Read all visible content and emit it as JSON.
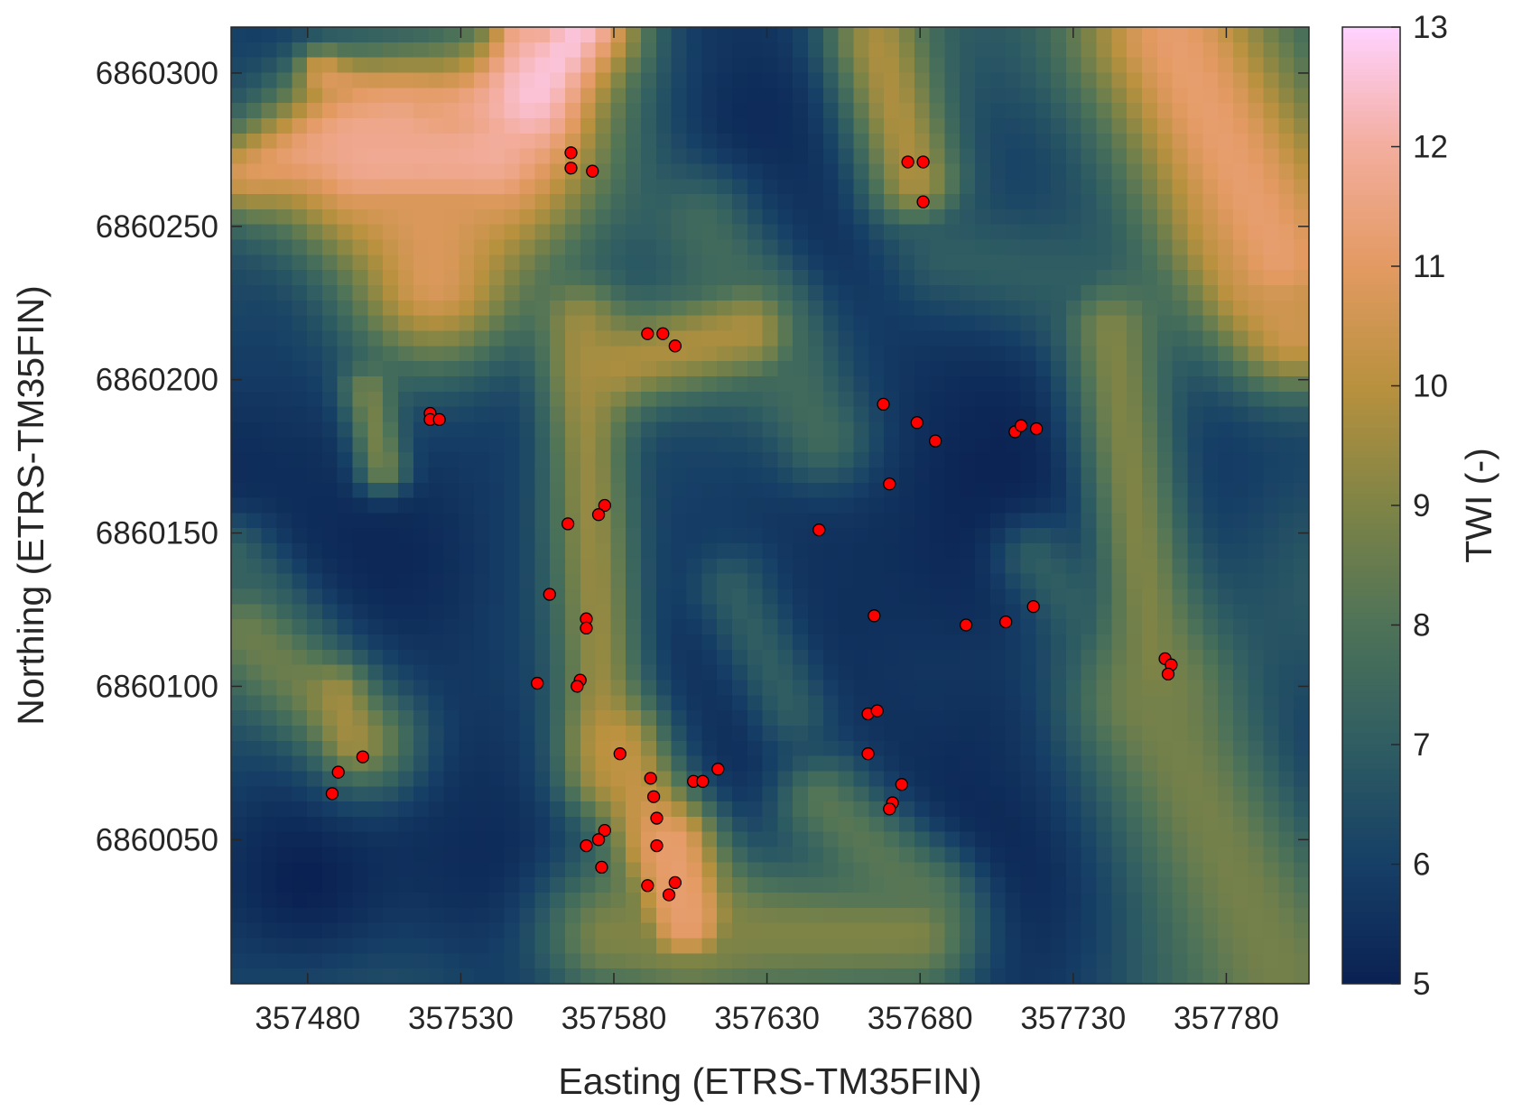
{
  "chart_data": {
    "type": "heatmap",
    "title": "",
    "xlabel": "Easting (ETRS-TM35FIN)",
    "ylabel": "Northing (ETRS-TM35FIN)",
    "xlim": [
      357455,
      357807
    ],
    "ylim": [
      6860003,
      6860315
    ],
    "xticks": [
      357480,
      357530,
      357580,
      357630,
      357680,
      357730,
      357780
    ],
    "yticks": [
      6860050,
      6860100,
      6860150,
      6860200,
      6860250,
      6860300
    ],
    "colorbar": {
      "label": "TWI (-)",
      "min": 5,
      "max": 13,
      "ticks": [
        5,
        6,
        7,
        8,
        9,
        10,
        11,
        12,
        13
      ],
      "colormap": [
        [
          5,
          "#0a2152"
        ],
        [
          6,
          "#163f66"
        ],
        [
          7,
          "#2f5d62"
        ],
        [
          8,
          "#4e7358"
        ],
        [
          9,
          "#7f8446"
        ],
        [
          10,
          "#b8913e"
        ],
        [
          11,
          "#e39a62"
        ],
        [
          12,
          "#f3ad9e"
        ],
        [
          13,
          "#ffd2ff"
        ]
      ]
    },
    "heatmap_features": [
      {
        "type": "line",
        "x1": 357460,
        "y1": 6860267,
        "x2": 357510,
        "y2": 6860285,
        "w": 10,
        "twi": 10.5
      },
      {
        "type": "line",
        "x1": 357500,
        "y1": 6860272,
        "x2": 357540,
        "y2": 6860272,
        "w": 24,
        "twi": 11.8
      },
      {
        "type": "line",
        "x1": 357520,
        "y1": 6860262,
        "x2": 357522,
        "y2": 6860232,
        "w": 22,
        "twi": 10.8
      },
      {
        "type": "line",
        "x1": 357500,
        "y1": 6860285,
        "x2": 357550,
        "y2": 6860285,
        "w": 8,
        "twi": 11.3
      },
      {
        "type": "line",
        "x1": 357549,
        "y1": 6860290,
        "x2": 357550,
        "y2": 6860315,
        "w": 6,
        "twi": 10.8
      },
      {
        "type": "line",
        "x1": 357555,
        "y1": 6860294,
        "x2": 357570,
        "y2": 6860315,
        "w": 14,
        "twi": 12.6
      },
      {
        "type": "line",
        "x1": 357485,
        "y1": 6860300,
        "x2": 357500,
        "y2": 6860290,
        "w": 5,
        "twi": 10.8
      },
      {
        "type": "line",
        "x1": 357668,
        "y1": 6860310,
        "x2": 357680,
        "y2": 6860265,
        "w": 12,
        "twi": 9.8
      },
      {
        "type": "line",
        "x1": 357765,
        "y1": 6860312,
        "x2": 357800,
        "y2": 6860240,
        "w": 28,
        "twi": 11.2
      },
      {
        "type": "line",
        "x1": 357790,
        "y1": 6860250,
        "x2": 357805,
        "y2": 6860215,
        "w": 12,
        "twi": 10.5
      },
      {
        "type": "line",
        "x1": 357570,
        "y1": 6860218,
        "x2": 357578,
        "y2": 6860070,
        "w": 10,
        "twi": 9.4
      },
      {
        "type": "line",
        "x1": 357583,
        "y1": 6860078,
        "x2": 357605,
        "y2": 6860025,
        "w": 10,
        "twi": 10.2
      },
      {
        "type": "line",
        "x1": 357600,
        "y1": 6860045,
        "x2": 357605,
        "y2": 6860020,
        "w": 10,
        "twi": 11.2
      },
      {
        "type": "line",
        "x1": 357580,
        "y1": 6860016,
        "x2": 357680,
        "y2": 6860016,
        "w": 16,
        "twi": 9.0
      },
      {
        "type": "line",
        "x1": 357582,
        "y1": 6860204,
        "x2": 357625,
        "y2": 6860215,
        "w": 12,
        "twi": 9.8
      },
      {
        "type": "line",
        "x1": 357460,
        "y1": 6860115,
        "x2": 357500,
        "y2": 6860080,
        "w": 14,
        "twi": 8.6
      },
      {
        "type": "line",
        "x1": 357490,
        "y1": 6860095,
        "x2": 357495,
        "y2": 6860080,
        "w": 6,
        "twi": 9.6
      },
      {
        "type": "line",
        "x1": 357745,
        "y1": 6860215,
        "x2": 357760,
        "y2": 6860100,
        "w": 12,
        "twi": 9.0
      },
      {
        "type": "line",
        "x1": 357760,
        "y1": 6860090,
        "x2": 357800,
        "y2": 6860005,
        "w": 22,
        "twi": 8.8
      },
      {
        "type": "line",
        "x1": 357500,
        "y1": 6860195,
        "x2": 357505,
        "y2": 6860170,
        "w": 6,
        "twi": 8.8
      },
      {
        "type": "line",
        "x1": 357610,
        "y1": 6860250,
        "x2": 357650,
        "y2": 6860180,
        "w": 12,
        "twi": 7.6
      },
      {
        "type": "line",
        "x1": 357690,
        "y1": 6860240,
        "x2": 357740,
        "y2": 6860230,
        "w": 14,
        "twi": 7.0
      },
      {
        "type": "line",
        "x1": 357650,
        "y1": 6860060,
        "x2": 357680,
        "y2": 6860030,
        "w": 12,
        "twi": 8.2
      },
      {
        "type": "line",
        "x1": 357620,
        "y1": 6860130,
        "x2": 357640,
        "y2": 6860090,
        "w": 10,
        "twi": 7.0
      },
      {
        "type": "line",
        "x1": 357720,
        "y1": 6860140,
        "x2": 357745,
        "y2": 6860110,
        "w": 10,
        "twi": 7.0
      },
      {
        "type": "line",
        "x1": 357455,
        "y1": 6860140,
        "x2": 357470,
        "y2": 6860110,
        "w": 10,
        "twi": 7.2
      },
      {
        "type": "blob",
        "x": 357495,
        "y": 6860235,
        "r": 30,
        "twi": 5.0
      },
      {
        "type": "blob",
        "x": 357505,
        "y": 6860140,
        "r": 40,
        "twi": 5.2
      },
      {
        "type": "blob",
        "x": 357480,
        "y": 6860035,
        "r": 25,
        "twi": 5.0
      },
      {
        "type": "blob",
        "x": 357540,
        "y": 6860040,
        "r": 22,
        "twi": 5.3
      },
      {
        "type": "blob",
        "x": 357635,
        "y": 6860075,
        "r": 25,
        "twi": 5.2
      },
      {
        "type": "blob",
        "x": 357700,
        "y": 6860045,
        "r": 35,
        "twi": 5.0
      },
      {
        "type": "blob",
        "x": 357705,
        "y": 6860160,
        "r": 45,
        "twi": 5.0
      },
      {
        "type": "blob",
        "x": 357755,
        "y": 6860290,
        "r": 35,
        "twi": 5.0
      },
      {
        "type": "blob",
        "x": 357775,
        "y": 6860210,
        "r": 30,
        "twi": 5.0
      },
      {
        "type": "blob",
        "x": 357630,
        "y": 6860285,
        "r": 25,
        "twi": 5.3
      },
      {
        "type": "blob",
        "x": 357480,
        "y": 6860308,
        "r": 18,
        "twi": 5.3
      },
      {
        "type": "blob",
        "x": 357655,
        "y": 6860160,
        "r": 25,
        "twi": 5.5
      },
      {
        "type": "blob",
        "x": 357715,
        "y": 6860080,
        "r": 20,
        "twi": 5.3
      }
    ],
    "points_color": "#ff0000",
    "points": [
      {
        "x": 357566,
        "y": 6860274
      },
      {
        "x": 357566,
        "y": 6860269
      },
      {
        "x": 357573,
        "y": 6860268
      },
      {
        "x": 357676,
        "y": 6860271
      },
      {
        "x": 357681,
        "y": 6860271
      },
      {
        "x": 357681,
        "y": 6860258
      },
      {
        "x": 357591,
        "y": 6860215
      },
      {
        "x": 357596,
        "y": 6860215
      },
      {
        "x": 357600,
        "y": 6860211
      },
      {
        "x": 357520,
        "y": 6860189
      },
      {
        "x": 357520,
        "y": 6860187
      },
      {
        "x": 357523,
        "y": 6860187
      },
      {
        "x": 357668,
        "y": 6860192
      },
      {
        "x": 357679,
        "y": 6860186
      },
      {
        "x": 357685,
        "y": 6860180
      },
      {
        "x": 357711,
        "y": 6860183
      },
      {
        "x": 357713,
        "y": 6860185
      },
      {
        "x": 357718,
        "y": 6860184
      },
      {
        "x": 357670,
        "y": 6860166
      },
      {
        "x": 357565,
        "y": 6860153
      },
      {
        "x": 357577,
        "y": 6860159
      },
      {
        "x": 357575,
        "y": 6860156
      },
      {
        "x": 357647,
        "y": 6860151
      },
      {
        "x": 357559,
        "y": 6860130
      },
      {
        "x": 357571,
        "y": 6860122
      },
      {
        "x": 357571,
        "y": 6860119
      },
      {
        "x": 357665,
        "y": 6860123
      },
      {
        "x": 357695,
        "y": 6860120
      },
      {
        "x": 357708,
        "y": 6860121
      },
      {
        "x": 357717,
        "y": 6860126
      },
      {
        "x": 357760,
        "y": 6860109
      },
      {
        "x": 357762,
        "y": 6860107
      },
      {
        "x": 357761,
        "y": 6860104
      },
      {
        "x": 357555,
        "y": 6860101
      },
      {
        "x": 357569,
        "y": 6860102
      },
      {
        "x": 357568,
        "y": 6860100
      },
      {
        "x": 357663,
        "y": 6860091
      },
      {
        "x": 357666,
        "y": 6860092
      },
      {
        "x": 357663,
        "y": 6860078
      },
      {
        "x": 357498,
        "y": 6860077
      },
      {
        "x": 357490,
        "y": 6860072
      },
      {
        "x": 357488,
        "y": 6860065
      },
      {
        "x": 357582,
        "y": 6860078
      },
      {
        "x": 357592,
        "y": 6860070
      },
      {
        "x": 357593,
        "y": 6860064
      },
      {
        "x": 357594,
        "y": 6860057
      },
      {
        "x": 357606,
        "y": 6860069
      },
      {
        "x": 357609,
        "y": 6860069
      },
      {
        "x": 357614,
        "y": 6860073
      },
      {
        "x": 357674,
        "y": 6860068
      },
      {
        "x": 357671,
        "y": 6860062
      },
      {
        "x": 357670,
        "y": 6860060
      },
      {
        "x": 357577,
        "y": 6860053
      },
      {
        "x": 357575,
        "y": 6860050
      },
      {
        "x": 357571,
        "y": 6860048
      },
      {
        "x": 357594,
        "y": 6860048
      },
      {
        "x": 357576,
        "y": 6860041
      },
      {
        "x": 357591,
        "y": 6860035
      },
      {
        "x": 357600,
        "y": 6860036
      },
      {
        "x": 357598,
        "y": 6860032
      }
    ]
  }
}
